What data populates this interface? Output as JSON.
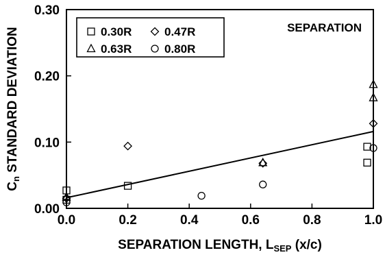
{
  "chart_data": {
    "type": "scatter",
    "title": "",
    "annotation": "SEPARATION",
    "xlabel": {
      "main": "SEPARATION LENGTH, L",
      "sub": "SEP",
      "tail": " (x/c)"
    },
    "ylabel": {
      "main": "C",
      "sub": "n",
      "tail": " STANDARD DEVIATION"
    },
    "xlim": [
      0.0,
      1.0
    ],
    "ylim": [
      0.0,
      0.3
    ],
    "xticks": [
      0.0,
      0.2,
      0.4,
      0.6,
      0.8,
      1.0
    ],
    "xtick_labels": [
      "0.0",
      "0.2",
      "0.4",
      "0.6",
      "0.8",
      "1.0"
    ],
    "yticks": [
      0.0,
      0.1,
      0.2,
      0.3
    ],
    "ytick_labels": [
      "0.00",
      "0.10",
      "0.20",
      "0.30"
    ],
    "grid": false,
    "legend_position": "top-left",
    "series": [
      {
        "name": "0.30R",
        "marker": "square",
        "points": [
          [
            0.0,
            0.027
          ],
          [
            0.0,
            0.013
          ],
          [
            0.2,
            0.034
          ],
          [
            0.98,
            0.069
          ],
          [
            0.98,
            0.093
          ]
        ]
      },
      {
        "name": "0.47R",
        "marker": "diamond",
        "points": [
          [
            0.0,
            0.015
          ],
          [
            0.2,
            0.094
          ],
          [
            0.64,
            0.068
          ],
          [
            1.0,
            0.128
          ]
        ]
      },
      {
        "name": "0.63R",
        "marker": "triangle",
        "points": [
          [
            0.0,
            0.017
          ],
          [
            0.64,
            0.069
          ],
          [
            1.0,
            0.167
          ],
          [
            1.0,
            0.187
          ]
        ]
      },
      {
        "name": "0.80R",
        "marker": "circle",
        "points": [
          [
            0.0,
            0.009
          ],
          [
            0.44,
            0.019
          ],
          [
            0.64,
            0.036
          ],
          [
            1.0,
            0.091
          ]
        ]
      }
    ],
    "fit_line": {
      "x": [
        0.0,
        1.0
      ],
      "y": [
        0.016,
        0.116
      ]
    }
  }
}
